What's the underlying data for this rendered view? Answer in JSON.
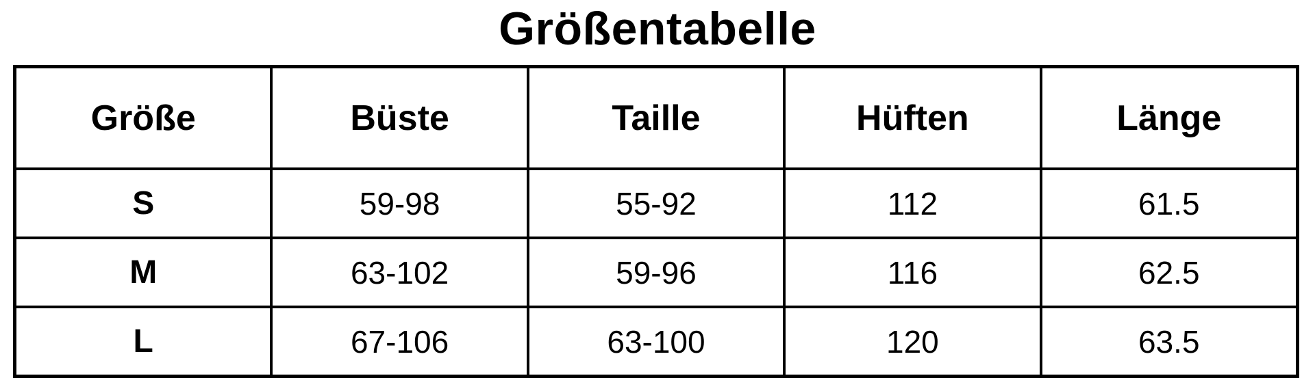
{
  "page": {
    "title": "Größentabelle"
  },
  "table": {
    "headers": [
      "Größe",
      "Büste",
      "Taille",
      "Hüften",
      "Länge"
    ],
    "rows": [
      {
        "cells": [
          "S",
          "59-98",
          "55-92",
          "112",
          "61.5"
        ]
      },
      {
        "cells": [
          "M",
          "63-102",
          "59-96",
          "116",
          "62.5"
        ]
      },
      {
        "cells": [
          "L",
          "67-106",
          "63-100",
          "120",
          "63.5"
        ]
      }
    ]
  },
  "colors": {
    "text": "#000000",
    "border": "#000000",
    "background": "#ffffff"
  }
}
